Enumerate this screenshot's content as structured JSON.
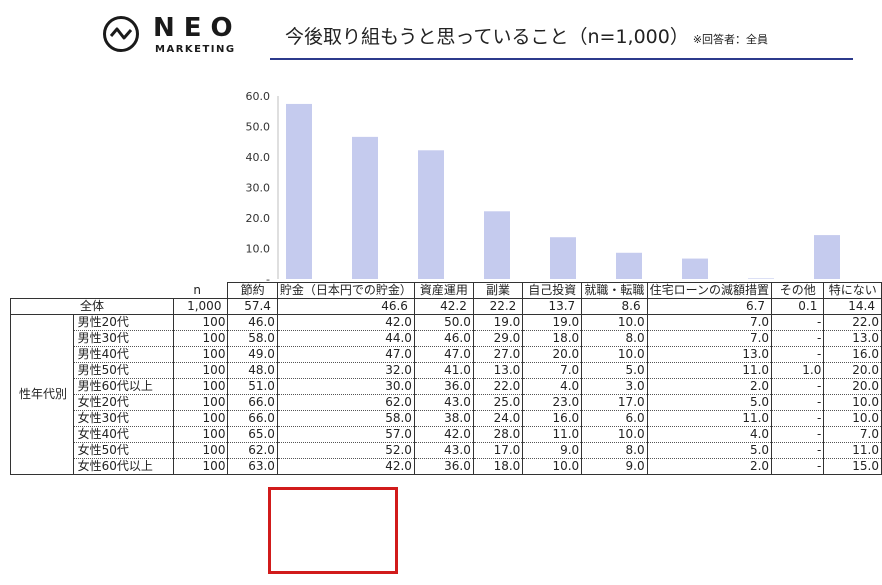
{
  "logo": {
    "name": "NEO",
    "sub": "MARKETING"
  },
  "title": {
    "main": "今後取り組もうと思っていること（n=1,000）",
    "note": "※回答者：全員"
  },
  "chart_data": {
    "type": "bar",
    "categories": [
      "節約",
      "貯金（日本円での貯金）",
      "資産運用",
      "副業",
      "自己投資",
      "就職・転職",
      "住宅ローンの減額措置",
      "その他",
      "特にない"
    ],
    "values": [
      57.4,
      46.6,
      42.2,
      22.2,
      13.7,
      8.6,
      6.7,
      0.1,
      14.4
    ],
    "ylim": [
      0,
      60
    ],
    "yticks": [
      "60.0",
      "50.0",
      "40.0",
      "30.0",
      "20.0",
      "10.0",
      "-"
    ],
    "bar_color": "#c5cbee"
  },
  "table": {
    "n_label": "n",
    "headers": [
      "節約",
      "貯金（日本円での貯金）",
      "資産運用",
      "副業",
      "自己投資",
      "就職・転職",
      "住宅ローンの減額措置",
      "その他",
      "特にない"
    ],
    "total": {
      "label": "全体",
      "n": "1,000",
      "values": [
        "57.4",
        "46.6",
        "42.2",
        "22.2",
        "13.7",
        "8.6",
        "6.7",
        "0.1",
        "14.4"
      ]
    },
    "group_label": "性年代別",
    "rows": [
      {
        "label": "男性20代",
        "n": "100",
        "values": [
          "46.0",
          "42.0",
          "50.0",
          "19.0",
          "19.0",
          "10.0",
          "7.0",
          "-",
          "22.0"
        ]
      },
      {
        "label": "男性30代",
        "n": "100",
        "values": [
          "58.0",
          "44.0",
          "46.0",
          "29.0",
          "18.0",
          "8.0",
          "7.0",
          "-",
          "13.0"
        ]
      },
      {
        "label": "男性40代",
        "n": "100",
        "values": [
          "49.0",
          "47.0",
          "47.0",
          "27.0",
          "20.0",
          "10.0",
          "13.0",
          "-",
          "16.0"
        ]
      },
      {
        "label": "男性50代",
        "n": "100",
        "values": [
          "48.0",
          "32.0",
          "41.0",
          "13.0",
          "7.0",
          "5.0",
          "11.0",
          "1.0",
          "20.0"
        ]
      },
      {
        "label": "男性60代以上",
        "n": "100",
        "values": [
          "51.0",
          "30.0",
          "36.0",
          "22.0",
          "4.0",
          "3.0",
          "2.0",
          "-",
          "20.0"
        ]
      },
      {
        "label": "女性20代",
        "n": "100",
        "values": [
          "66.0",
          "62.0",
          "43.0",
          "25.0",
          "23.0",
          "17.0",
          "5.0",
          "-",
          "10.0"
        ]
      },
      {
        "label": "女性30代",
        "n": "100",
        "values": [
          "66.0",
          "58.0",
          "38.0",
          "24.0",
          "16.0",
          "6.0",
          "11.0",
          "-",
          "10.0"
        ]
      },
      {
        "label": "女性40代",
        "n": "100",
        "values": [
          "65.0",
          "57.0",
          "42.0",
          "28.0",
          "11.0",
          "10.0",
          "4.0",
          "-",
          "7.0"
        ]
      },
      {
        "label": "女性50代",
        "n": "100",
        "values": [
          "62.0",
          "52.0",
          "43.0",
          "17.0",
          "9.0",
          "8.0",
          "5.0",
          "-",
          "11.0"
        ]
      },
      {
        "label": "女性60代以上",
        "n": "100",
        "values": [
          "63.0",
          "42.0",
          "36.0",
          "18.0",
          "10.0",
          "9.0",
          "2.0",
          "-",
          "15.0"
        ]
      }
    ]
  },
  "highlight": {
    "color": "#d11b1b"
  }
}
